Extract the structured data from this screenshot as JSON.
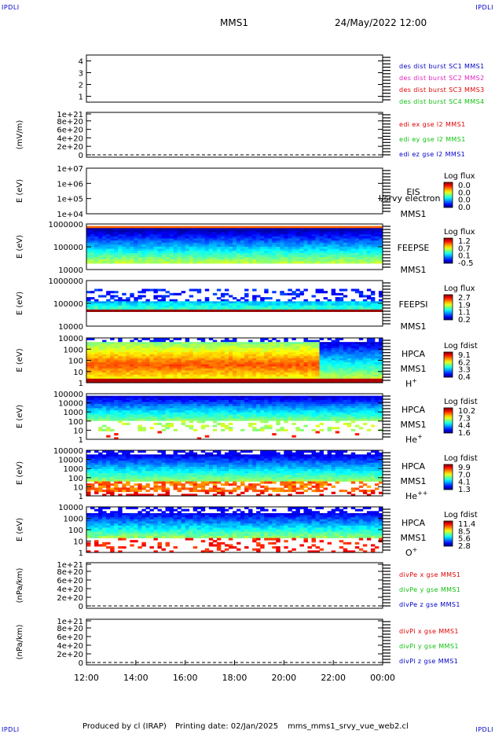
{
  "corners": {
    "top_left": "IPDLI",
    "top_right": "IPDLI",
    "bottom_left": "IPDLI",
    "bottom_right": "IPDLI"
  },
  "header": {
    "spacecraft": "MMS1",
    "datetime": "24/May/2022 12:00"
  },
  "footer": {
    "produced_by": "Produced by cl (IRAP)",
    "printing_date": "Printing date: 02/Jan/2025",
    "file": "mms_mms1_srvy_vue_web2.cl"
  },
  "chart_data": [
    {
      "type": "line",
      "panel": "sc-position",
      "ylabel": "",
      "ylim": [
        0.5,
        4.5
      ],
      "yticks": [
        "1",
        "2",
        "3",
        "4"
      ],
      "legend": [
        {
          "text": "des dist burst SC1 MMS1",
          "color": "#0000c8"
        },
        {
          "text": "des dist burst SC2 MMS2",
          "color": "#e020c0"
        },
        {
          "text": "des dist burst SC3 MMS3",
          "color": "#e00000"
        },
        {
          "text": "des dist burst SC4 MMS4",
          "color": "#10c010"
        }
      ]
    },
    {
      "type": "line",
      "panel": "edi-e-field",
      "ylabel": "(mV/m)",
      "yticks": [
        "1e+21",
        "8e+20",
        "6e+20",
        "4e+20",
        "2e+20",
        "0"
      ],
      "legend": [
        {
          "text": "edi ex gse l2 MMS1",
          "color": "#e00000"
        },
        {
          "text": "edi ey gse l2 MMS1",
          "color": "#10c010"
        },
        {
          "text": "edi ez gse l2 MMS1",
          "color": "#0000c8"
        }
      ]
    },
    {
      "type": "heatmap",
      "panel": "eis",
      "ylabel": "E (eV)",
      "yscale": "log",
      "yticks": [
        "1e+07",
        "1e+06",
        "1e+05",
        "1e+04"
      ],
      "instrument": "EIS",
      "extra_label": "l/srvy electron tc",
      "spacecraft": "MMS1",
      "cbar_title": "Log flux",
      "cbar_ticks": [
        "0.0",
        "0.0",
        "0.0",
        "0.0"
      ]
    },
    {
      "type": "heatmap",
      "panel": "feeps-e",
      "ylabel": "E (eV)",
      "yscale": "log",
      "yticks": [
        "1000000",
        "100000",
        "10000"
      ],
      "instrument": "FEEPSE",
      "spacecraft": "MMS1",
      "cbar_title": "Log flux",
      "cbar_ticks": [
        "1.2",
        "0.7",
        "0.1",
        "-0.5"
      ]
    },
    {
      "type": "heatmap",
      "panel": "feeps-i",
      "ylabel": "E (eV)",
      "yscale": "log",
      "yticks": [
        "1000000",
        "100000",
        "10000"
      ],
      "instrument": "FEEPSI",
      "spacecraft": "MMS1",
      "cbar_title": "Log flux",
      "cbar_ticks": [
        "2.7",
        "1.9",
        "1.1",
        "0.2"
      ]
    },
    {
      "type": "heatmap",
      "panel": "hpca-h",
      "ylabel": "E (eV)",
      "yscale": "log",
      "yticks": [
        "10000",
        "1000",
        "100",
        "10",
        "1"
      ],
      "instrument": "HPCA",
      "spacecraft": "MMS1",
      "species": "H",
      "species_charge": "+",
      "cbar_title": "Log fdist",
      "cbar_ticks": [
        "9.1",
        "6.2",
        "3.3",
        "0.4"
      ]
    },
    {
      "type": "heatmap",
      "panel": "hpca-he",
      "ylabel": "E (eV)",
      "yscale": "log",
      "yticks": [
        "100000",
        "10000",
        "1000",
        "100",
        "10",
        "1"
      ],
      "instrument": "HPCA",
      "spacecraft": "MMS1",
      "species": "He",
      "species_charge": "+",
      "cbar_title": "Log fdist",
      "cbar_ticks": [
        "10.2",
        "7.3",
        "4.4",
        "1.6"
      ]
    },
    {
      "type": "heatmap",
      "panel": "hpca-he2",
      "ylabel": "E (eV)",
      "yscale": "log",
      "yticks": [
        "100000",
        "10000",
        "1000",
        "100",
        "10",
        "1"
      ],
      "instrument": "HPCA",
      "spacecraft": "MMS1",
      "species": "He",
      "species_charge": "++",
      "cbar_title": "Log fdist",
      "cbar_ticks": [
        "9.9",
        "7.0",
        "4.1",
        "1.3"
      ]
    },
    {
      "type": "heatmap",
      "panel": "hpca-o",
      "ylabel": "E (eV)",
      "yscale": "log",
      "yticks": [
        "10000",
        "1000",
        "100",
        "10",
        "1"
      ],
      "instrument": "HPCA",
      "spacecraft": "MMS1",
      "species": "O",
      "species_charge": "+",
      "cbar_title": "Log fdist",
      "cbar_ticks": [
        "11.4",
        "8.5",
        "5.6",
        "2.8"
      ]
    },
    {
      "type": "line",
      "panel": "divpe",
      "ylabel": "(nPa/km)",
      "yticks": [
        "1e+21",
        "8e+20",
        "6e+20",
        "4e+20",
        "2e+20",
        "0"
      ],
      "legend": [
        {
          "text": "divPe x gse MMS1",
          "color": "#e00000"
        },
        {
          "text": "divPe y gse MMS1",
          "color": "#10c010"
        },
        {
          "text": "divPe z gse MMS1",
          "color": "#0000c8"
        }
      ]
    },
    {
      "type": "line",
      "panel": "divpi",
      "ylabel": "(nPa/km)",
      "yticks": [
        "1e+21",
        "8e+20",
        "6e+20",
        "4e+20",
        "2e+20",
        "0"
      ],
      "legend": [
        {
          "text": "divPi x gse MMS1",
          "color": "#e00000"
        },
        {
          "text": "divPi y gse MMS1",
          "color": "#10c010"
        },
        {
          "text": "divPi z gse MMS1",
          "color": "#0000c8"
        }
      ]
    }
  ],
  "time_axis": {
    "ticks": [
      "12:00",
      "14:00",
      "16:00",
      "18:00",
      "20:00",
      "22:00",
      "00:00"
    ]
  }
}
